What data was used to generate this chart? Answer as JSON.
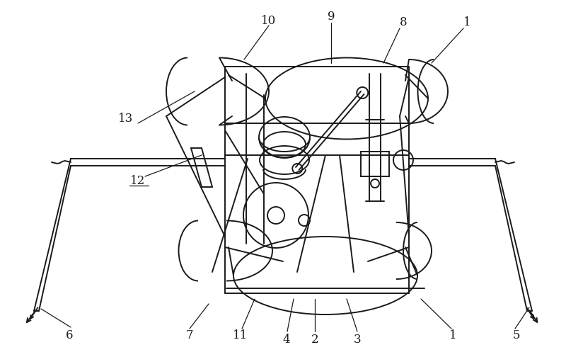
{
  "bg_color": "#ffffff",
  "line_color": "#1a1a1a",
  "lw": 1.4,
  "label_fs": 12,
  "labels": {
    "1t": [
      0.718,
      0.935,
      "1"
    ],
    "1b": [
      0.66,
      0.07,
      "1"
    ],
    "2": [
      0.445,
      0.058,
      "2"
    ],
    "3": [
      0.52,
      0.058,
      "3"
    ],
    "4": [
      0.405,
      0.058,
      4
    ],
    "5": [
      0.78,
      0.058,
      "5"
    ],
    "6": [
      0.098,
      0.058,
      "6"
    ],
    "7": [
      0.268,
      0.058,
      "7"
    ],
    "8": [
      0.59,
      0.94,
      "8"
    ],
    "9": [
      0.48,
      0.95,
      "9"
    ],
    "10": [
      0.38,
      0.94,
      "10"
    ],
    "11": [
      0.36,
      0.058,
      "11"
    ],
    "12": [
      0.195,
      0.49,
      "12"
    ],
    "13": [
      0.178,
      0.67,
      "13"
    ]
  }
}
